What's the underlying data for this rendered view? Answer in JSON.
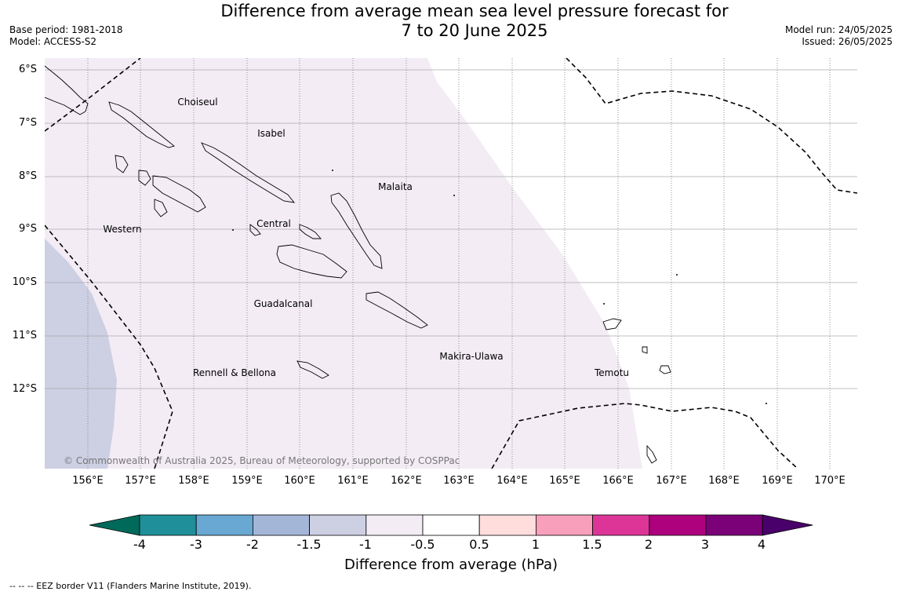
{
  "title_line1": "Difference from average mean sea level pressure forecast for",
  "title_line2": "7 to 20 June 2025",
  "meta_left": [
    "Base period: 1981-2018",
    "Model: ACCESS-S2"
  ],
  "meta_right": [
    "Model run: 24/05/2025",
    "Issued: 26/05/2025"
  ],
  "lat_labels": [
    "6°S",
    "7°S",
    "8°S",
    "9°S",
    "10°S",
    "11°S",
    "12°S"
  ],
  "lon_labels": [
    "156°E",
    "157°E",
    "158°E",
    "159°E",
    "160°E",
    "161°E",
    "162°E",
    "163°E",
    "164°E",
    "165°E",
    "166°E",
    "167°E",
    "168°E",
    "169°E",
    "170°E"
  ],
  "places": [
    {
      "name": "Choiseul"
    },
    {
      "name": "Isabel"
    },
    {
      "name": "Malaita"
    },
    {
      "name": "Western"
    },
    {
      "name": "Central"
    },
    {
      "name": "Guadalcanal"
    },
    {
      "name": "Makira-Ulawa"
    },
    {
      "name": "Rennell & Bellona"
    },
    {
      "name": "Temotu"
    }
  ],
  "copyright": "© Commonwealth of Australia 2025, Bureau of Meteorology, supported by COSPPac",
  "colorbar": {
    "ticks": [
      "-4",
      "-3",
      "-2",
      "-1.5",
      "-1",
      "-0.5",
      "0.5",
      "1",
      "1.5",
      "2",
      "3",
      "4"
    ],
    "colors": [
      "#006a5a",
      "#1f8f9a",
      "#68a8d2",
      "#a4b6d8",
      "#cdcfe3",
      "#f3ecf5",
      "#ffffff",
      "#ffdddd",
      "#f89fbc",
      "#dd3597",
      "#ae017e",
      "#7a0177",
      "#49006a"
    ],
    "label": "Difference from average (hPa)"
  },
  "footnote": "--  --  -- EEZ border V11 (Flanders Marine Institute, 2019)."
}
